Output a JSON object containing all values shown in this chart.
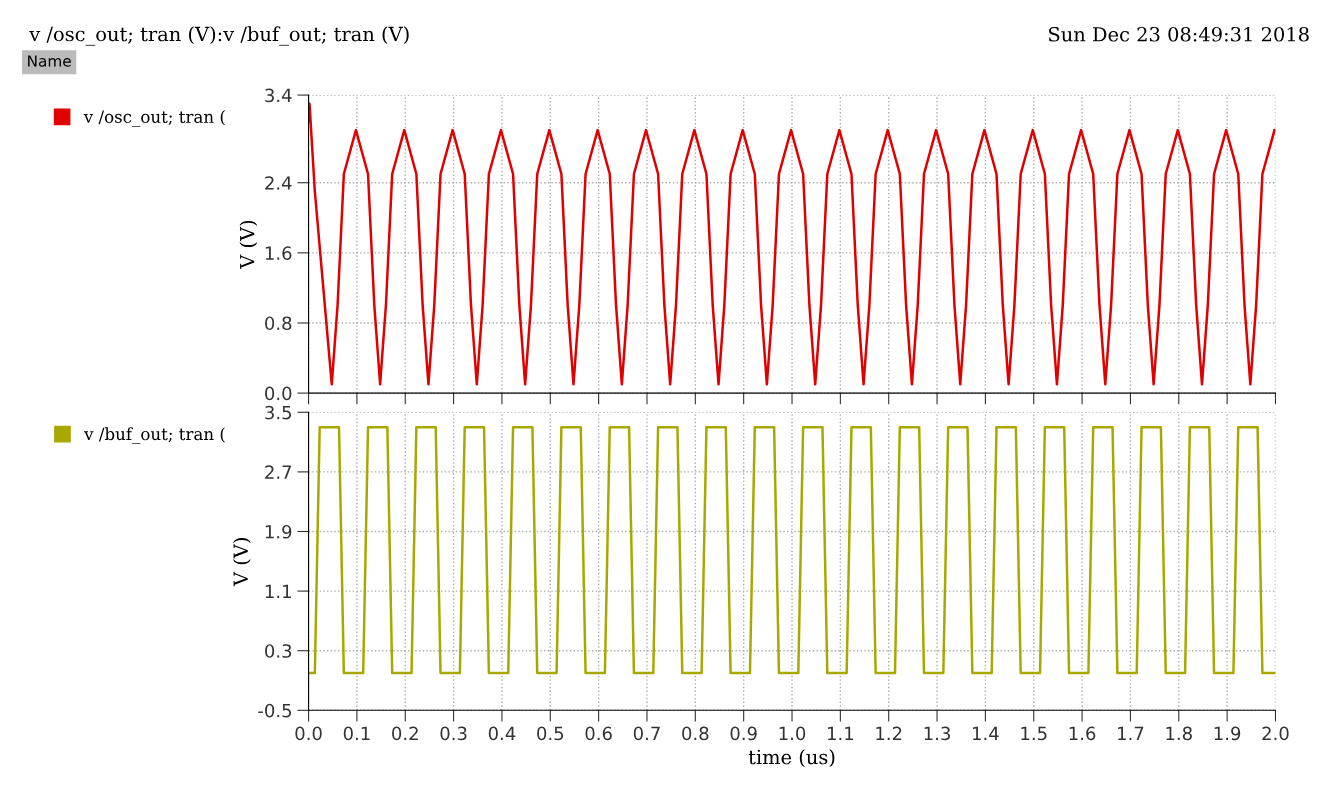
{
  "chart_data": [
    {
      "type": "line",
      "title": "v /osc_out; tran (V):v /buf_out; tran (V)",
      "annotations": [
        "Sun Dec 23 08:49:31 2018",
        "Name"
      ],
      "ylabel": "V (V)",
      "xlim": [
        0.0,
        2.0
      ],
      "xticks": [
        0,
        0.1,
        0.2,
        0.3,
        0.4,
        0.5,
        0.6,
        0.7,
        0.8,
        0.9,
        1,
        1.1,
        1.2,
        1.3,
        1.4,
        1.5,
        1.6,
        1.7,
        1.8,
        1.9,
        2
      ],
      "ylim": [
        0.0,
        3.4
      ],
      "yticks": [
        {
          "value": 0,
          "label": "0.0"
        },
        0.8,
        1.6,
        2.4,
        3.4
      ],
      "tick_labels": "y",
      "grid": true,
      "legend": "left",
      "marker": "none",
      "line_style": "solid",
      "series": [
        {
          "name": "v /osc_out; tran (",
          "color": "#e00000",
          "x": [
            0.0,
            0.002,
            0.013,
            0.048,
            0.06,
            0.073,
            0.098,
            0.123,
            0.136,
            0.148,
            0.16,
            0.173,
            0.198,
            0.223,
            0.236,
            0.248,
            0.26,
            0.273,
            0.298,
            0.323,
            0.336,
            0.348,
            0.36,
            0.373,
            0.398,
            0.423,
            0.436,
            0.448,
            0.46,
            0.473,
            0.498,
            0.523,
            0.536,
            0.548,
            0.56,
            0.573,
            0.598,
            0.623,
            0.636,
            0.648,
            0.66,
            0.673,
            0.698,
            0.723,
            0.736,
            0.748,
            0.76,
            0.773,
            0.798,
            0.823,
            0.836,
            0.848,
            0.86,
            0.873,
            0.898,
            0.923,
            0.936,
            0.948,
            0.96,
            0.973,
            0.998,
            1.023,
            1.036,
            1.048,
            1.06,
            1.073,
            1.098,
            1.123,
            1.136,
            1.148,
            1.16,
            1.173,
            1.198,
            1.223,
            1.236,
            1.248,
            1.26,
            1.273,
            1.298,
            1.323,
            1.336,
            1.348,
            1.36,
            1.373,
            1.398,
            1.423,
            1.436,
            1.448,
            1.46,
            1.473,
            1.498,
            1.523,
            1.536,
            1.548,
            1.56,
            1.573,
            1.598,
            1.623,
            1.636,
            1.648,
            1.66,
            1.673,
            1.698,
            1.723,
            1.736,
            1.748,
            1.76,
            1.773,
            1.798,
            1.823,
            1.836,
            1.848,
            1.86,
            1.873,
            1.898,
            1.923,
            1.936,
            1.948,
            1.96,
            1.973,
            1.998
          ],
          "values": [
            3.1,
            3.3,
            2.3,
            0.1,
            1.0,
            2.5,
            3.0,
            2.5,
            1.0,
            0.1,
            1.0,
            2.5,
            3.0,
            2.5,
            1.0,
            0.1,
            1.0,
            2.5,
            3.0,
            2.5,
            1.0,
            0.1,
            1.0,
            2.5,
            3.0,
            2.5,
            1.0,
            0.1,
            1.0,
            2.5,
            3.0,
            2.5,
            1.0,
            0.1,
            1.0,
            2.5,
            3.0,
            2.5,
            1.0,
            0.1,
            1.0,
            2.5,
            3.0,
            2.5,
            1.0,
            0.1,
            1.0,
            2.5,
            3.0,
            2.5,
            1.0,
            0.1,
            1.0,
            2.5,
            3.0,
            2.5,
            1.0,
            0.1,
            1.0,
            2.5,
            3.0,
            2.5,
            1.0,
            0.1,
            1.0,
            2.5,
            3.0,
            2.5,
            1.0,
            0.1,
            1.0,
            2.5,
            3.0,
            2.5,
            1.0,
            0.1,
            1.0,
            2.5,
            3.0,
            2.5,
            1.0,
            0.1,
            1.0,
            2.5,
            3.0,
            2.5,
            1.0,
            0.1,
            1.0,
            2.5,
            3.0,
            2.5,
            1.0,
            0.1,
            1.0,
            2.5,
            3.0,
            2.5,
            1.0,
            0.1,
            1.0,
            2.5,
            3.0,
            2.5,
            1.0,
            0.1,
            1.0,
            2.5,
            3.0,
            2.5,
            1.0,
            0.1,
            1.0,
            2.5,
            3.0,
            2.5,
            1.0,
            0.1,
            1.0,
            2.5,
            3.0
          ]
        }
      ]
    },
    {
      "type": "line",
      "xlabel": "time (us)",
      "ylabel": "V (V)",
      "xlim": [
        0.0,
        2.0
      ],
      "xticks": [
        {
          "value": 0,
          "label": "0.0"
        },
        0.1,
        0.2,
        0.3,
        0.4,
        0.5,
        0.6,
        0.7,
        0.8,
        0.9,
        {
          "value": 1,
          "label": "1.0"
        },
        1.1,
        1.2,
        1.3,
        1.4,
        1.5,
        1.6,
        1.7,
        1.8,
        1.9,
        {
          "value": 2,
          "label": "2.0"
        }
      ],
      "ylim": [
        -0.5,
        3.5
      ],
      "yticks": [
        -0.5,
        0.3,
        1.1,
        1.9,
        2.7,
        3.5
      ],
      "grid": true,
      "legend": "left",
      "marker": "none",
      "line_style": "solid",
      "series": [
        {
          "name": "v /buf_out; tran (",
          "color": "#a8a800",
          "x": [
            0.0,
            0.013,
            0.023,
            0.063,
            0.073,
            0.113,
            0.123,
            0.163,
            0.173,
            0.213,
            0.223,
            0.263,
            0.273,
            0.313,
            0.323,
            0.363,
            0.373,
            0.413,
            0.423,
            0.463,
            0.473,
            0.513,
            0.523,
            0.563,
            0.573,
            0.613,
            0.623,
            0.663,
            0.673,
            0.713,
            0.723,
            0.763,
            0.773,
            0.813,
            0.823,
            0.863,
            0.873,
            0.913,
            0.923,
            0.963,
            0.973,
            1.013,
            1.023,
            1.063,
            1.073,
            1.113,
            1.123,
            1.163,
            1.173,
            1.213,
            1.223,
            1.263,
            1.273,
            1.313,
            1.323,
            1.363,
            1.373,
            1.413,
            1.423,
            1.463,
            1.473,
            1.513,
            1.523,
            1.563,
            1.573,
            1.613,
            1.623,
            1.663,
            1.673,
            1.713,
            1.723,
            1.763,
            1.773,
            1.813,
            1.823,
            1.863,
            1.873,
            1.913,
            1.923,
            1.963,
            1.973,
            2.0
          ],
          "values": [
            0.0,
            0.0,
            3.3,
            3.3,
            0.0,
            0.0,
            3.3,
            3.3,
            0.0,
            0.0,
            3.3,
            3.3,
            0.0,
            0.0,
            3.3,
            3.3,
            0.0,
            0.0,
            3.3,
            3.3,
            0.0,
            0.0,
            3.3,
            3.3,
            0.0,
            0.0,
            3.3,
            3.3,
            0.0,
            0.0,
            3.3,
            3.3,
            0.0,
            0.0,
            3.3,
            3.3,
            0.0,
            0.0,
            3.3,
            3.3,
            0.0,
            0.0,
            3.3,
            3.3,
            0.0,
            0.0,
            3.3,
            3.3,
            0.0,
            0.0,
            3.3,
            3.3,
            0.0,
            0.0,
            3.3,
            3.3,
            0.0,
            0.0,
            3.3,
            3.3,
            0.0,
            0.0,
            3.3,
            3.3,
            0.0,
            0.0,
            3.3,
            3.3,
            0.0,
            0.0,
            3.3,
            3.3,
            0.0,
            0.0,
            3.3,
            3.3,
            0.0,
            0.0,
            3.3,
            3.3,
            0.0,
            0.0
          ]
        }
      ]
    }
  ]
}
